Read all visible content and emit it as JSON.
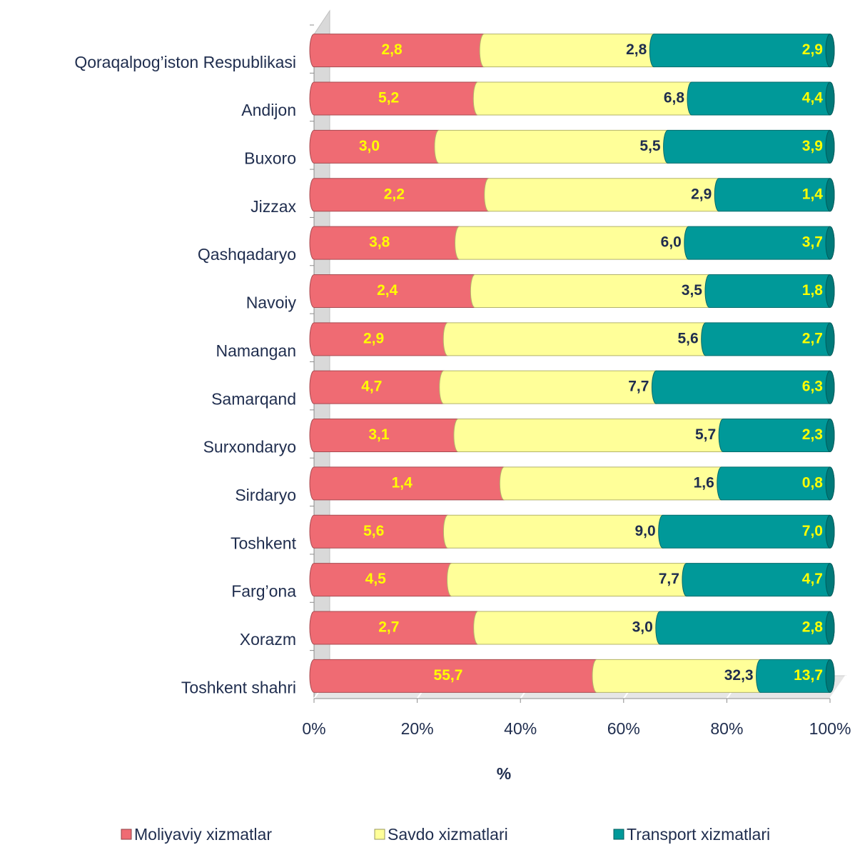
{
  "chart_data": {
    "type": "bar",
    "orientation": "horizontal",
    "stack": "percent",
    "x_label": "%",
    "categories": [
      "Qoraqalpog’iston Respublikasi",
      "Andijon",
      "Buxoro",
      "Jizzax",
      "Qashqadaryo",
      "Navoiy",
      "Namangan",
      "Samarqand",
      "Surxondaryo",
      "Sirdaryo",
      "Toshkent",
      "Farg’ona",
      "Xorazm",
      "Toshkent shahri"
    ],
    "series": [
      {
        "name": "Moliyaviy xizmatlar",
        "color": "#ef6b73",
        "label_color": "#ffff00",
        "values": [
          2.8,
          5.2,
          3.0,
          2.2,
          3.8,
          2.4,
          2.9,
          4.7,
          3.1,
          1.4,
          5.6,
          4.5,
          2.7,
          55.7
        ],
        "value_labels": [
          "2,8",
          "5,2",
          "3,0",
          "2,2",
          "3,8",
          "2,4",
          "2,9",
          "4,7",
          "3,1",
          "1,4",
          "5,6",
          "4,5",
          "2,7",
          "55,7"
        ]
      },
      {
        "name": "Savdo xizmatlari",
        "color": "#ffff99",
        "label_color": "#1f2d4e",
        "values": [
          2.8,
          6.8,
          5.5,
          2.9,
          6.0,
          3.5,
          5.6,
          7.7,
          5.7,
          1.6,
          9.0,
          7.7,
          3.0,
          32.3
        ],
        "value_labels": [
          "2,8",
          "6,8",
          "5,5",
          "2,9",
          "6,0",
          "3,5",
          "5,6",
          "7,7",
          "5,7",
          "1,6",
          "9,0",
          "7,7",
          "3,0",
          "32,3"
        ]
      },
      {
        "name": "Transport xizmatlari",
        "color": "#009999",
        "label_color": "#ffff00",
        "values": [
          2.9,
          4.4,
          3.9,
          1.4,
          3.7,
          1.8,
          2.7,
          6.3,
          2.3,
          0.8,
          7.0,
          4.7,
          2.8,
          13.7
        ],
        "value_labels": [
          "2,9",
          "4,4",
          "3,9",
          "1,4",
          "3,7",
          "1,8",
          "2,7",
          "6,3",
          "2,3",
          "0,8",
          "7,0",
          "4,7",
          "2,8",
          "13,7"
        ]
      }
    ],
    "xlim": [
      0,
      100
    ],
    "xticks": [
      {
        "value": 0,
        "label": "0%"
      },
      {
        "value": 20,
        "label": "20%"
      },
      {
        "value": 40,
        "label": "40%"
      },
      {
        "value": 60,
        "label": "60%"
      },
      {
        "value": 80,
        "label": "80%"
      },
      {
        "value": 100,
        "label": "100%"
      }
    ],
    "grid": true,
    "legend": "bottom"
  }
}
